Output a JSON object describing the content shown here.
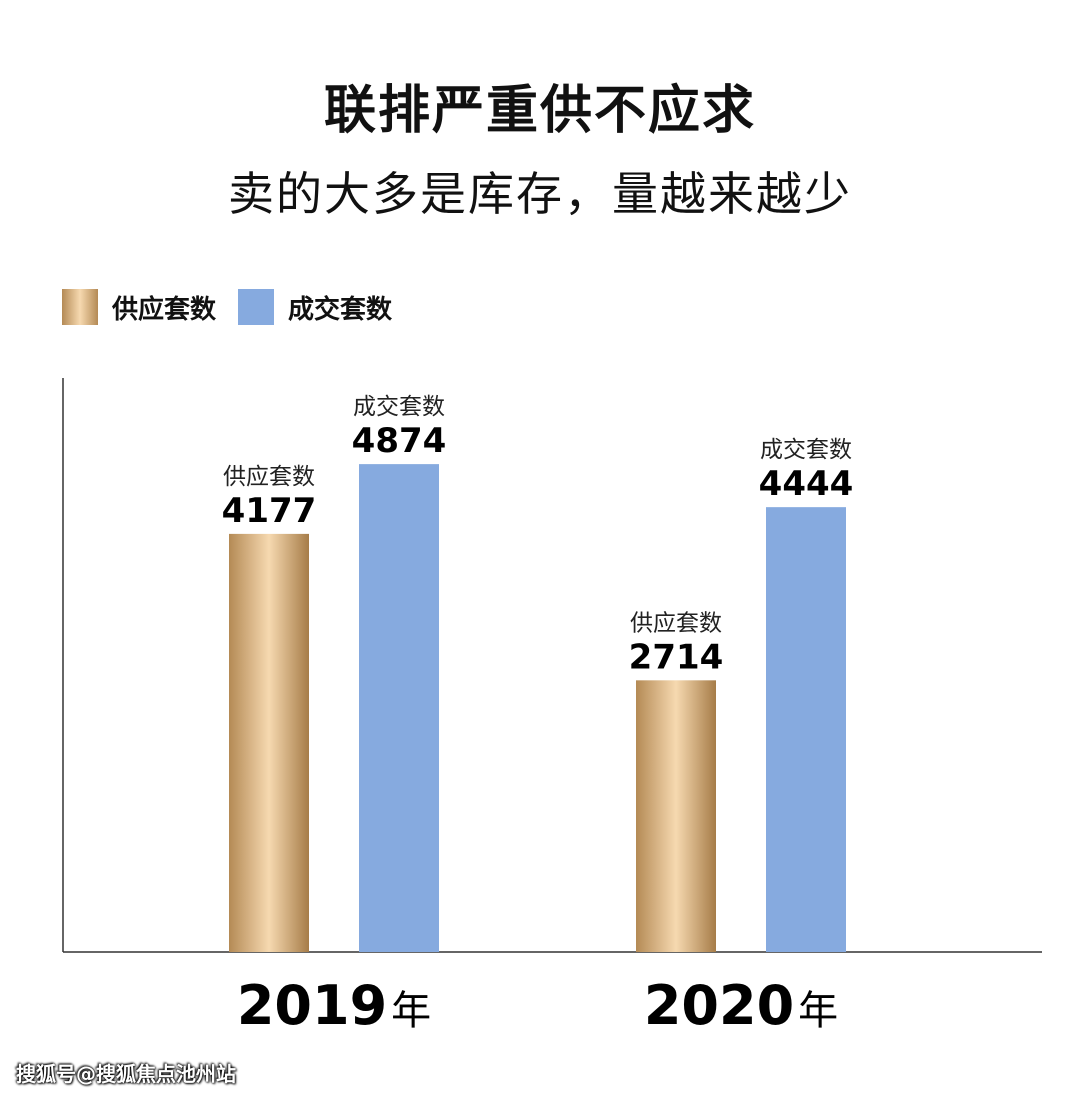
{
  "title": "联排严重供不应求",
  "subtitle": "卖的大多是库存，量越来越少",
  "legend": {
    "supply": "供应套数",
    "deals": "成交套数"
  },
  "colors": {
    "supply_dark": "#b48a55",
    "supply_light": "#f6d9b0",
    "deals": "#86aadf",
    "axis": "#333333"
  },
  "chart_data": {
    "type": "bar",
    "categories": [
      "2019",
      "2020"
    ],
    "category_suffix": "年",
    "series": [
      {
        "name": "供应套数",
        "values": [
          4177,
          2714
        ]
      },
      {
        "name": "成交套数",
        "values": [
          4874,
          4444
        ]
      }
    ],
    "ylim": [
      0,
      5500
    ],
    "grid": false,
    "legend_position": "top-left",
    "xlabel": "",
    "ylabel": ""
  },
  "watermark": "搜狐号@搜狐焦点池州站"
}
